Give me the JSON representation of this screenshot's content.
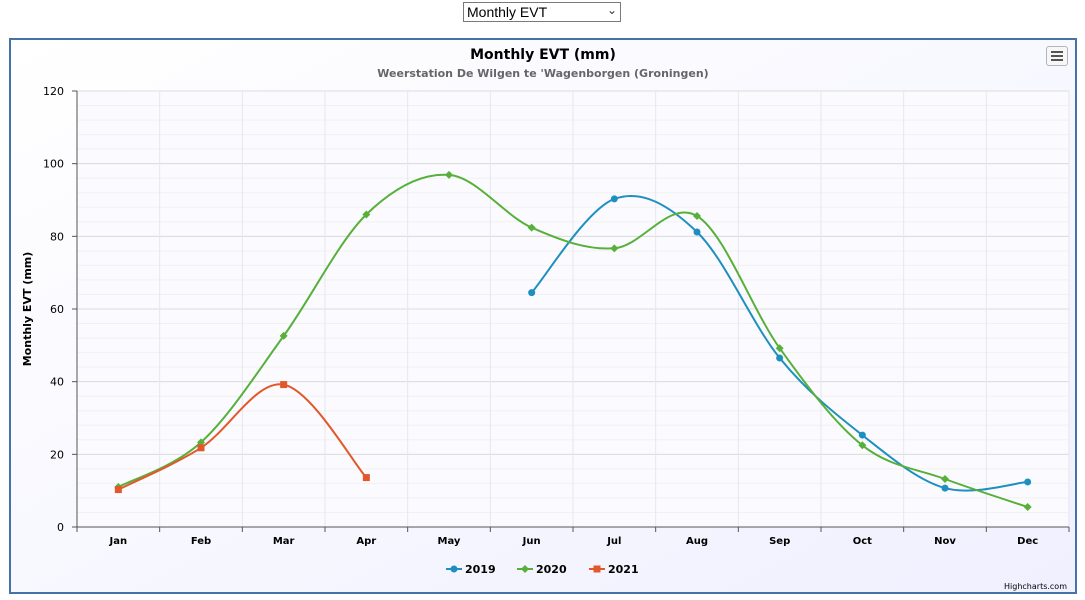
{
  "dropdown": {
    "selected": "Monthly EVT"
  },
  "credits": "Highcharts.com",
  "colors": {
    "2019": "#1f8fbf",
    "2020": "#57b03a",
    "2021": "#e3582a",
    "border": "#4572a7"
  },
  "menu_icon": "hamburger-menu-icon",
  "chart_data": {
    "type": "line",
    "title": "Monthly EVT (mm)",
    "subtitle": "Weerstation De Wilgen te 'Wagenborgen (Groningen)",
    "xlabel": "",
    "ylabel": "Monthly EVT (mm)",
    "ylim": [
      0,
      120
    ],
    "yticks": [
      "0",
      "20",
      "40",
      "60",
      "80",
      "100",
      "120"
    ],
    "categories": [
      "Jan",
      "Feb",
      "Mar",
      "Apr",
      "May",
      "Jun",
      "Jul",
      "Aug",
      "Sep",
      "Oct",
      "Nov",
      "Dec"
    ],
    "grid": true,
    "legend_position": "bottom-center",
    "series": [
      {
        "name": "2019",
        "marker": "circle",
        "values": [
          null,
          null,
          null,
          null,
          null,
          64.5,
          90.3,
          81.2,
          46.5,
          25.3,
          10.7,
          12.4
        ]
      },
      {
        "name": "2020",
        "marker": "diamond",
        "values": [
          11.0,
          23.3,
          52.6,
          86.0,
          96.9,
          82.4,
          76.7,
          85.6,
          49.2,
          22.5,
          13.2,
          5.5
        ]
      },
      {
        "name": "2021",
        "marker": "square",
        "values": [
          10.3,
          21.8,
          39.2,
          13.6,
          null,
          null,
          null,
          null,
          null,
          null,
          null,
          null
        ]
      }
    ]
  }
}
